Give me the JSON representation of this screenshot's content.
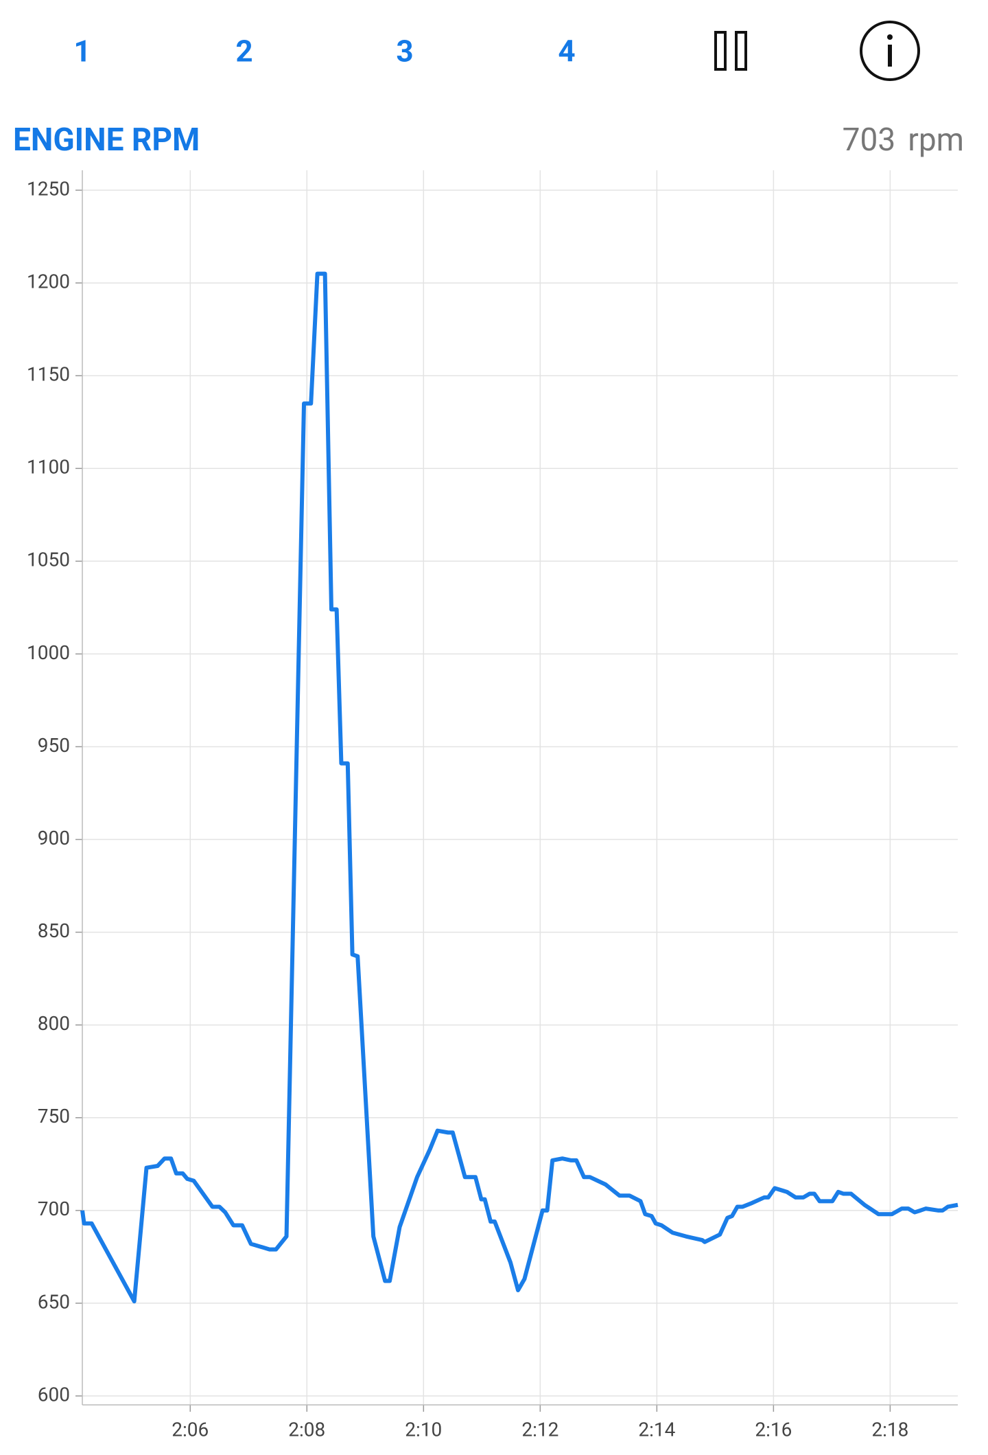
{
  "tabs": [
    "1",
    "2",
    "3",
    "4"
  ],
  "header": {
    "title": "ENGINE RPM",
    "value": 703,
    "unit": "rpm"
  },
  "chart_data": {
    "type": "line",
    "color": "#1a7de8",
    "grid": true,
    "x": [
      124.15,
      124.18,
      124.31,
      125.04,
      125.25,
      125.44,
      125.56,
      125.67,
      125.76,
      125.87,
      125.95,
      126.06,
      126.38,
      126.5,
      126.6,
      126.74,
      126.89,
      127.04,
      127.36,
      127.47,
      127.65,
      127.95,
      128.07,
      128.18,
      128.31,
      128.42,
      128.51,
      128.59,
      128.7,
      128.78,
      128.87,
      129.14,
      129.34,
      129.42,
      129.59,
      129.89,
      130.11,
      130.24,
      130.42,
      130.5,
      130.71,
      130.89,
      130.99,
      131.05,
      131.15,
      131.22,
      131.49,
      131.62,
      131.73,
      132.04,
      132.12,
      132.21,
      132.38,
      132.53,
      132.62,
      132.75,
      132.85,
      133.12,
      133.36,
      133.53,
      133.72,
      133.8,
      133.91,
      133.98,
      134.08,
      134.27,
      134.5,
      134.78,
      134.82,
      135.08,
      135.21,
      135.29,
      135.38,
      135.47,
      135.63,
      135.84,
      135.91,
      136.02,
      136.23,
      136.38,
      136.51,
      136.62,
      136.7,
      136.79,
      137.01,
      137.11,
      137.2,
      137.33,
      137.56,
      137.8,
      138.03,
      138.2,
      138.31,
      138.42,
      138.52,
      138.61,
      138.82,
      138.9,
      138.99,
      139.16
    ],
    "values": [
      700,
      693,
      693,
      651,
      723,
      724,
      728,
      728,
      720,
      720,
      717,
      716,
      702,
      702,
      699,
      692,
      692,
      682,
      679,
      679,
      686,
      1135,
      1135,
      1205,
      1205,
      1024,
      1024,
      941,
      941,
      838,
      837,
      686,
      662,
      662,
      691,
      718,
      733,
      743,
      742,
      742,
      718,
      718,
      706,
      706,
      694,
      694,
      672,
      657,
      663,
      700,
      700,
      727,
      728,
      727,
      727,
      718,
      718,
      714,
      708,
      708,
      705,
      698,
      697,
      693,
      692,
      688,
      686,
      684,
      683,
      687,
      696,
      697,
      702,
      702,
      704,
      707,
      707,
      712,
      710,
      707,
      707,
      709,
      709,
      705,
      705,
      710,
      709,
      709,
      703,
      698,
      698,
      701,
      701,
      699,
      700,
      701,
      700,
      700,
      702,
      703
    ],
    "xlim": [
      124.15,
      139.16
    ],
    "xticks": [
      {
        "value": 126,
        "label": "2:06"
      },
      {
        "value": 128,
        "label": "2:08"
      },
      {
        "value": 130,
        "label": "2:10"
      },
      {
        "value": 132,
        "label": "2:12"
      },
      {
        "value": 134,
        "label": "2:14"
      },
      {
        "value": 136,
        "label": "2:16"
      },
      {
        "value": 138,
        "label": "2:18"
      }
    ],
    "ylim": [
      600,
      1250
    ],
    "yticks": [
      600,
      650,
      700,
      750,
      800,
      850,
      900,
      950,
      1000,
      1050,
      1100,
      1150,
      1200,
      1250
    ]
  }
}
